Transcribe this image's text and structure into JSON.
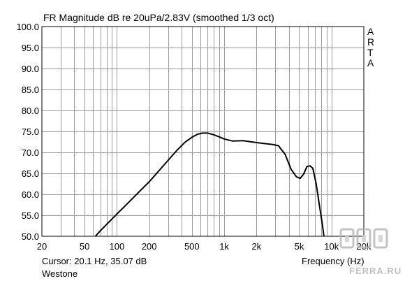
{
  "chart_data": {
    "type": "line",
    "title": "FR Magnitude dB re 20uPa/2.83V (smoothed 1/3 oct)",
    "xlabel": "Frequency (Hz)",
    "xscale": "log",
    "xlim": [
      20,
      20000
    ],
    "ylim": [
      50,
      100
    ],
    "grid": true,
    "x_ticks": [
      {
        "value": 20,
        "label": "20"
      },
      {
        "value": 50,
        "label": "50"
      },
      {
        "value": 100,
        "label": "100"
      },
      {
        "value": 200,
        "label": "200"
      },
      {
        "value": 500,
        "label": "500"
      },
      {
        "value": 1000,
        "label": "1k"
      },
      {
        "value": 2000,
        "label": "2k"
      },
      {
        "value": 5000,
        "label": "5k"
      },
      {
        "value": 10000,
        "label": "10k"
      },
      {
        "value": 20000,
        "label": "20k"
      }
    ],
    "y_ticks": [
      {
        "value": 100,
        "label": "100.0"
      },
      {
        "value": 95,
        "label": "95.0"
      },
      {
        "value": 90,
        "label": "90.0"
      },
      {
        "value": 85,
        "label": "85.0"
      },
      {
        "value": 80,
        "label": "80.0"
      },
      {
        "value": 75,
        "label": "75.0"
      },
      {
        "value": 70,
        "label": "70.0"
      },
      {
        "value": 65,
        "label": "65.0"
      },
      {
        "value": 60,
        "label": "60.0"
      },
      {
        "value": 55,
        "label": "55.0"
      },
      {
        "value": 50,
        "label": "50.0"
      }
    ],
    "series": [
      {
        "color": "#000000",
        "points": [
          [
            63,
            50.0
          ],
          [
            70,
            51.3
          ],
          [
            80,
            52.8
          ],
          [
            100,
            55.3
          ],
          [
            130,
            58.2
          ],
          [
            170,
            61.2
          ],
          [
            200,
            63.0
          ],
          [
            250,
            65.8
          ],
          [
            300,
            68.1
          ],
          [
            360,
            70.4
          ],
          [
            430,
            72.4
          ],
          [
            500,
            73.6
          ],
          [
            560,
            74.3
          ],
          [
            630,
            74.6
          ],
          [
            700,
            74.6
          ],
          [
            800,
            74.2
          ],
          [
            900,
            73.7
          ],
          [
            1000,
            73.2
          ],
          [
            1200,
            72.7
          ],
          [
            1500,
            72.8
          ],
          [
            1800,
            72.5
          ],
          [
            2200,
            72.2
          ],
          [
            2800,
            71.9
          ],
          [
            3200,
            71.6
          ],
          [
            3700,
            69.5
          ],
          [
            4200,
            66.0
          ],
          [
            4700,
            64.2
          ],
          [
            5100,
            63.8
          ],
          [
            5500,
            64.8
          ],
          [
            5900,
            66.6
          ],
          [
            6300,
            66.8
          ],
          [
            6700,
            66.2
          ],
          [
            7200,
            62.5
          ],
          [
            7700,
            57.5
          ],
          [
            8200,
            53.0
          ],
          [
            8500,
            50.0
          ]
        ]
      }
    ]
  },
  "side_label": [
    "A",
    "R",
    "T",
    "A"
  ],
  "cursor_text": "Cursor: 20.1 Hz, 35.07 dB",
  "device_name": "Westone",
  "watermark_text": "FERRA.RU"
}
